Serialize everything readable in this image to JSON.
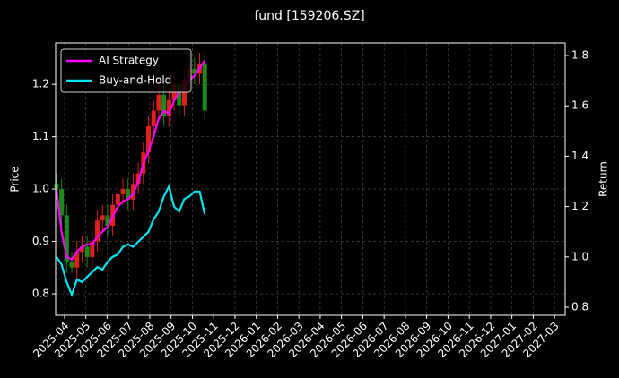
{
  "chart_data": {
    "type": "candlestick",
    "title": "fund [159206.SZ]",
    "y_label": "Price",
    "y2_label": "Return",
    "x": [
      -0.38,
      -0.14,
      0.1,
      0.34,
      0.58,
      0.82,
      1.06,
      1.3,
      1.54,
      1.78,
      2.02,
      2.26,
      2.5,
      2.74,
      2.98,
      3.22,
      3.46,
      3.7,
      3.94,
      4.18,
      4.42,
      4.66,
      4.9,
      5.14,
      5.38,
      5.62,
      5.86,
      6.1,
      6.34,
      6.58
    ],
    "open": [
      1.01,
      1.0,
      0.95,
      0.86,
      0.85,
      0.88,
      0.89,
      0.87,
      0.9,
      0.94,
      0.95,
      0.93,
      0.97,
      0.99,
      1.0,
      0.98,
      1.01,
      1.03,
      1.07,
      1.12,
      1.15,
      1.18,
      1.14,
      1.17,
      1.2,
      1.16,
      1.21,
      1.23,
      1.22,
      1.24
    ],
    "high": [
      1.03,
      1.02,
      0.97,
      0.88,
      0.9,
      0.91,
      0.91,
      0.92,
      0.96,
      0.97,
      0.97,
      0.99,
      1.01,
      1.02,
      1.02,
      1.03,
      1.05,
      1.09,
      1.14,
      1.17,
      1.2,
      1.2,
      1.19,
      1.22,
      1.22,
      1.23,
      1.25,
      1.25,
      1.26,
      1.26
    ],
    "low": [
      0.98,
      0.93,
      0.84,
      0.84,
      0.83,
      0.86,
      0.85,
      0.85,
      0.88,
      0.92,
      0.91,
      0.91,
      0.95,
      0.97,
      0.96,
      0.96,
      0.99,
      1.01,
      1.05,
      1.1,
      1.13,
      1.12,
      1.12,
      1.15,
      1.14,
      1.14,
      1.19,
      1.2,
      1.2,
      1.13
    ],
    "close": [
      1.0,
      0.95,
      0.86,
      0.85,
      0.88,
      0.89,
      0.87,
      0.9,
      0.94,
      0.95,
      0.93,
      0.97,
      0.99,
      1.0,
      0.98,
      1.01,
      1.03,
      1.07,
      1.12,
      1.15,
      1.18,
      1.14,
      1.17,
      1.2,
      1.16,
      1.21,
      1.23,
      1.22,
      1.24,
      1.15
    ],
    "up_color": "#e0201a",
    "down_color": "#1a8a1a",
    "series": [
      {
        "name": "AI Strategy",
        "color": "#ff00ff",
        "axis": "y2",
        "values": [
          1.27,
          1.1,
          1.0,
          0.99,
          1.02,
          1.04,
          1.05,
          1.05,
          1.08,
          1.1,
          1.12,
          1.16,
          1.2,
          1.22,
          1.23,
          1.25,
          1.3,
          1.37,
          1.42,
          1.48,
          1.55,
          1.58,
          1.57,
          1.62,
          1.66,
          1.67,
          1.7,
          1.72,
          1.75,
          1.78
        ]
      },
      {
        "name": "Buy-and-Hold",
        "color": "#00e5ee",
        "axis": "y2",
        "values": [
          1.0,
          0.97,
          0.9,
          0.85,
          0.91,
          0.9,
          0.92,
          0.94,
          0.96,
          0.95,
          0.98,
          1.0,
          1.01,
          1.04,
          1.05,
          1.04,
          1.06,
          1.08,
          1.1,
          1.15,
          1.18,
          1.24,
          1.28,
          1.2,
          1.18,
          1.23,
          1.24,
          1.26,
          1.26,
          1.17
        ]
      }
    ],
    "xlim": [
      -0.42,
      23.5
    ],
    "xticks": [
      {
        "value": 0,
        "label": "2025-04"
      },
      {
        "value": 1,
        "label": "2025-05"
      },
      {
        "value": 2,
        "label": "2025-06"
      },
      {
        "value": 3,
        "label": "2025-07"
      },
      {
        "value": 4,
        "label": "2025-08"
      },
      {
        "value": 5,
        "label": "2025-09"
      },
      {
        "value": 6,
        "label": "2025-10"
      },
      {
        "value": 7,
        "label": "2025-11"
      },
      {
        "value": 8,
        "label": "2025-12"
      },
      {
        "value": 9,
        "label": "2026-01"
      },
      {
        "value": 10,
        "label": "2026-02"
      },
      {
        "value": 11,
        "label": "2026-03"
      },
      {
        "value": 12,
        "label": "2026-04"
      },
      {
        "value": 13,
        "label": "2026-05"
      },
      {
        "value": 14,
        "label": "2026-06"
      },
      {
        "value": 15,
        "label": "2026-07"
      },
      {
        "value": 16,
        "label": "2026-08"
      },
      {
        "value": 17,
        "label": "2026-09"
      },
      {
        "value": 18,
        "label": "2026-10"
      },
      {
        "value": 19,
        "label": "2026-11"
      },
      {
        "value": 20,
        "label": "2026-12"
      },
      {
        "value": 21,
        "label": "2027-01"
      },
      {
        "value": 22,
        "label": "2027-02"
      },
      {
        "value": 23,
        "label": "2027-03"
      }
    ],
    "ylim": [
      0.759,
      1.279
    ],
    "yticks": [
      0.8,
      0.9,
      {
        "value": 1,
        "label": "1.0"
      },
      1.1,
      1.2
    ],
    "y2lim": [
      0.768,
      1.85
    ],
    "y2ticks": [
      0.8,
      {
        "value": 1,
        "label": "1.0"
      },
      1.2,
      1.4,
      1.6,
      1.8
    ],
    "grid": true,
    "legend": "upper-left"
  }
}
